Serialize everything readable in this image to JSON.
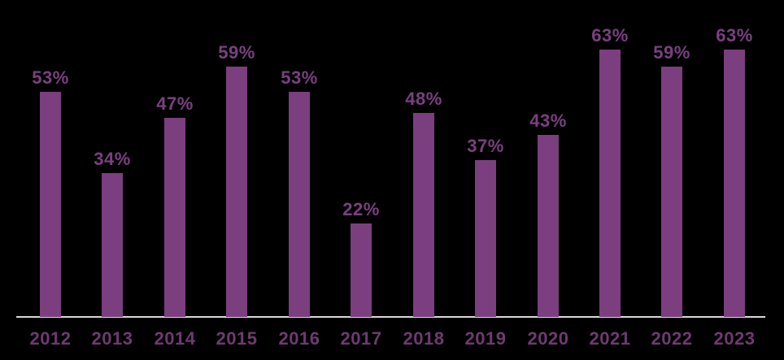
{
  "chart_data": {
    "type": "bar",
    "categories": [
      "2012",
      "2013",
      "2014",
      "2015",
      "2016",
      "2017",
      "2018",
      "2019",
      "2020",
      "2021",
      "2022",
      "2023"
    ],
    "values": [
      53,
      34,
      47,
      59,
      53,
      22,
      48,
      37,
      43,
      63,
      59,
      63
    ],
    "value_labels": [
      "53%",
      "34%",
      "47%",
      "59%",
      "53%",
      "22%",
      "48%",
      "37%",
      "43%",
      "63%",
      "59%",
      "63%"
    ],
    "title": "",
    "xlabel": "",
    "ylabel": "",
    "ylim": [
      0,
      75
    ],
    "grid": false,
    "legend": "none",
    "data_labels_position": "above-bars",
    "colors": {
      "background": "#000000",
      "bar_fill": "#7B3E7F",
      "value_label": "#7A4080",
      "year_label": "#6E3A70",
      "axis_line": "#D9D9D9"
    }
  }
}
